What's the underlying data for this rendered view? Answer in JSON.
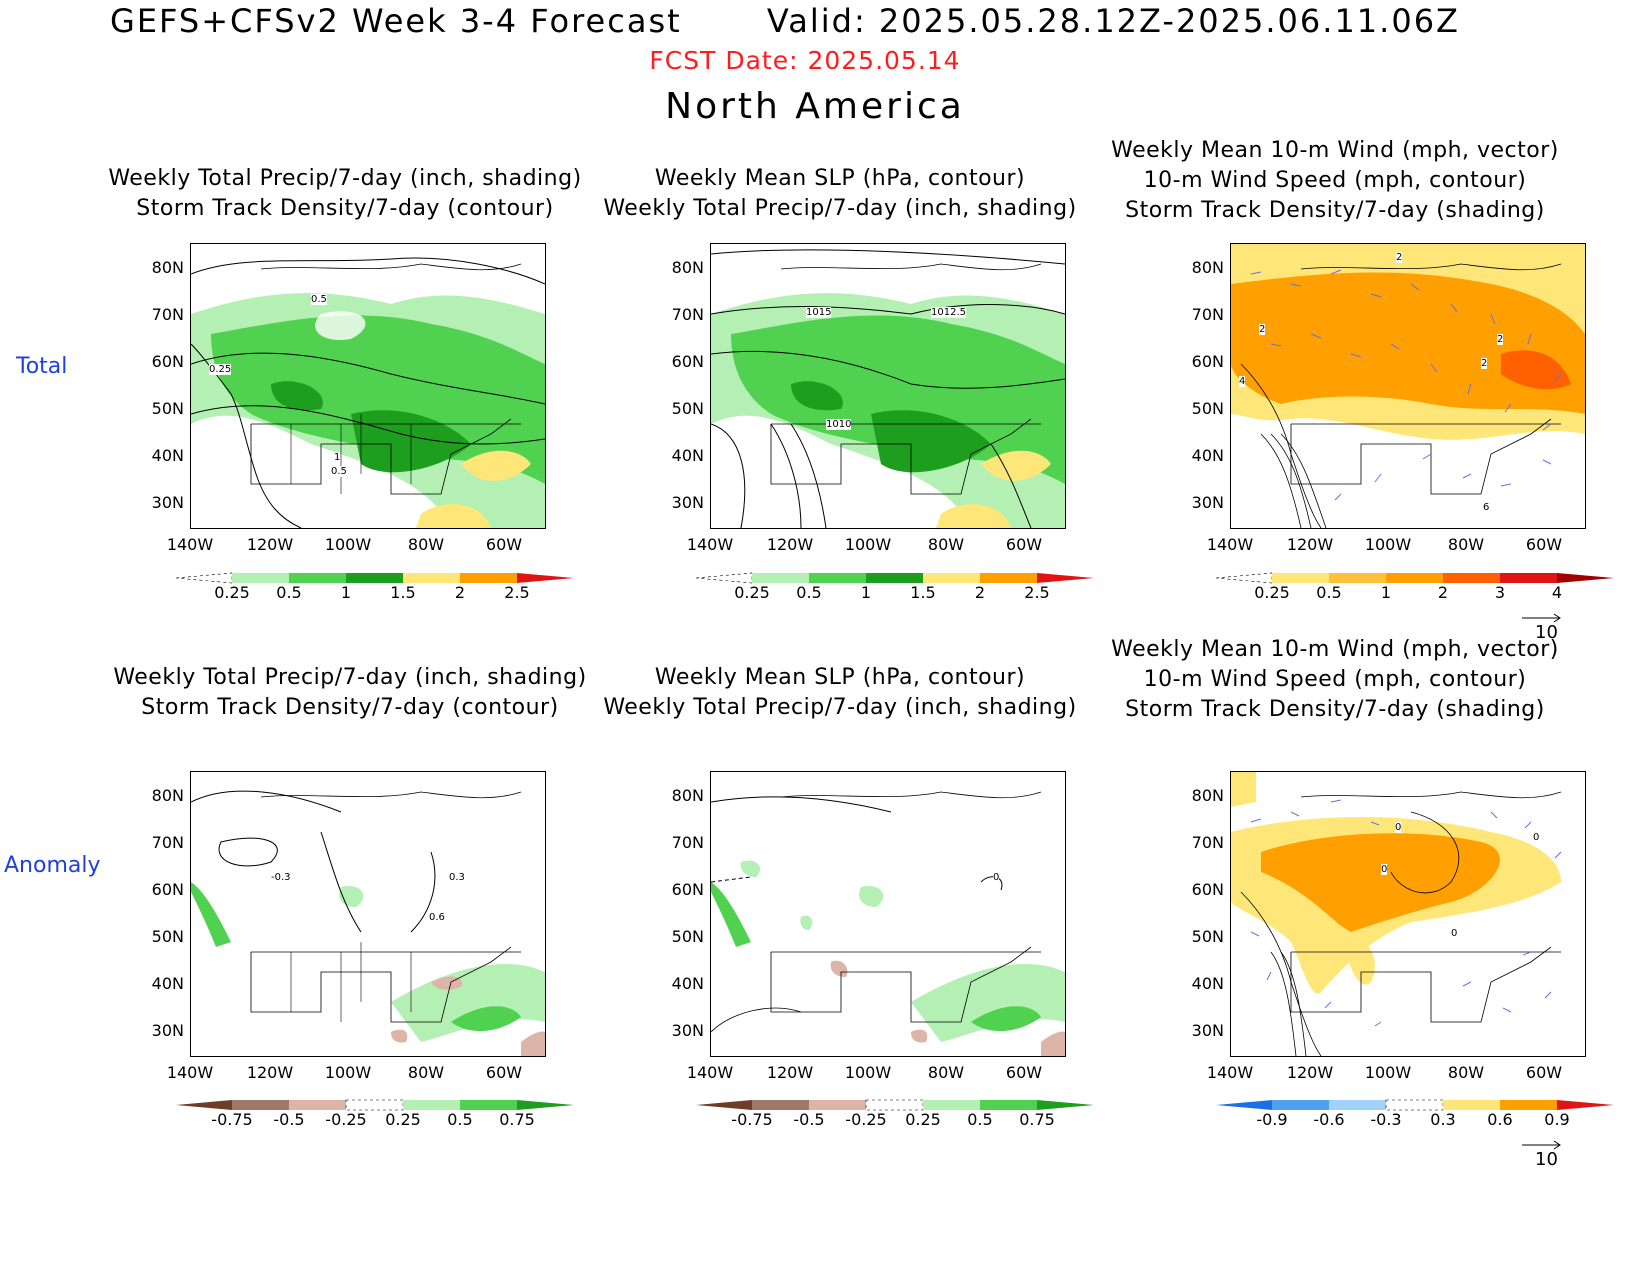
{
  "header": {
    "title": "GEFS+CFSv2 Week 3-4 Forecast       Valid: 2025.05.28.12Z-2025.06.11.06Z",
    "fcst_date": "FCST Date: 2025.05.14",
    "region": "North America"
  },
  "rows": {
    "total": "Total",
    "anomaly": "Anomaly"
  },
  "panels": {
    "p1": {
      "l1": "Weekly Total Precip/7-day (inch, shading)",
      "l2": "Storm Track Density/7-day (contour)"
    },
    "p2": {
      "l1": "Weekly Mean SLP (hPa, contour)",
      "l2": "Weekly Total Precip/7-day (inch, shading)"
    },
    "p3": {
      "l1": "Weekly Mean 10-m Wind (mph, vector)",
      "l2": "10-m Wind Speed (mph, contour)",
      "l3": "Storm Track Density/7-day (shading)"
    }
  },
  "axes": {
    "lat": [
      "80N",
      "70N",
      "60N",
      "50N",
      "40N",
      "30N"
    ],
    "lon": [
      "140W",
      "120W",
      "100W",
      "80W",
      "60W"
    ]
  },
  "contour_labels": {
    "p1": [
      "0.5",
      "0.25",
      "1",
      "0.5"
    ],
    "p2": [
      "1015",
      "1012.5",
      "1010"
    ],
    "p3": [
      "2",
      "2",
      "2",
      "2",
      "4",
      "6"
    ],
    "a1": [
      "-0.3",
      "0.3",
      "0.6"
    ],
    "a2": [
      "0"
    ],
    "a3": [
      "0",
      "0",
      "0",
      "0"
    ]
  },
  "colorbars": {
    "precip_total": {
      "labels": [
        "0.25",
        "0.5",
        "1",
        "1.5",
        "2",
        "2.5"
      ],
      "colors": [
        "#ffffff",
        "#b4f0b4",
        "#50d250",
        "#1e9e1e",
        "#ffe678",
        "#ffa000",
        "#e11414"
      ]
    },
    "storm_total": {
      "labels": [
        "0.25",
        "0.5",
        "1",
        "2",
        "3",
        "4"
      ],
      "colors": [
        "#ffffff",
        "#ffe678",
        "#ffc03c",
        "#ffa000",
        "#ff6000",
        "#e11414",
        "#a00000"
      ]
    },
    "precip_anom": {
      "labels": [
        "-0.75",
        "-0.5",
        "-0.25",
        "0.25",
        "0.5",
        "0.75"
      ],
      "colors": [
        "#6e3c28",
        "#a0786a",
        "#dcb4a8",
        "#ffffff",
        "#b4f0b4",
        "#50d250",
        "#1e9e1e"
      ]
    },
    "storm_anom": {
      "labels": [
        "-0.9",
        "-0.6",
        "-0.3",
        "0.3",
        "0.6",
        "0.9"
      ],
      "colors": [
        "#1e6ee6",
        "#50a0f0",
        "#a0d2fa",
        "#ffffff",
        "#ffe678",
        "#ffa000",
        "#e11414"
      ]
    }
  },
  "vector_ref": "10"
}
